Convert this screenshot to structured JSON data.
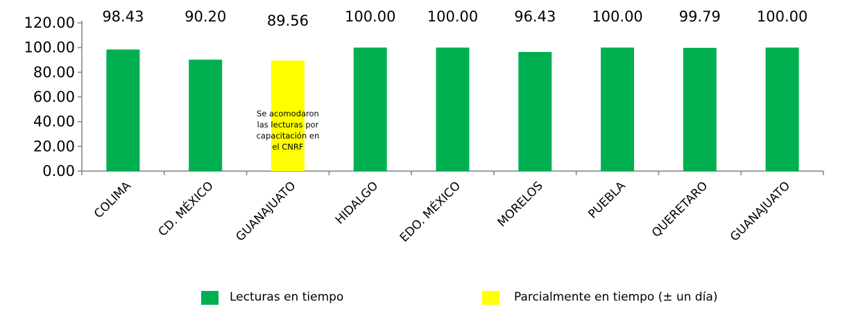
{
  "chart_data": {
    "type": "bar",
    "categories": [
      "COLIMA",
      "CD. MÉXICO",
      "GUANAJUATO",
      "HIDALGO",
      "EDO. MÉXICO",
      "MORELOS",
      "PUEBLA",
      "QUERETARO",
      "GUANAJUATO"
    ],
    "values": [
      98.43,
      90.2,
      89.56,
      100.0,
      100.0,
      96.43,
      100.0,
      99.79,
      100.0
    ],
    "value_labels": [
      "98.43",
      "90.20",
      "89.56",
      "100.00",
      "100.00",
      "96.43",
      "100.00",
      "99.79",
      "100.00"
    ],
    "bar_status": [
      "on_time",
      "on_time",
      "partial",
      "on_time",
      "on_time",
      "on_time",
      "on_time",
      "on_time",
      "on_time"
    ],
    "yticks": [
      "0.00",
      "20.00",
      "40.00",
      "60.00",
      "80.00",
      "100.00",
      "120.00"
    ],
    "ylim": [
      0,
      120
    ],
    "grid": false,
    "legend_position": "bottom",
    "legend": [
      {
        "key": "on_time",
        "label": "Lecturas en tiempo",
        "color": "#00b050"
      },
      {
        "key": "partial",
        "label": "Parcialmente en tiempo (± un día)",
        "color": "#ffff00"
      }
    ],
    "annotation": {
      "category_index": 2,
      "lines": [
        "Se acomodaron",
        "las lecturas por",
        "capacitación en",
        "el CNRF"
      ]
    }
  },
  "colors": {
    "on_time": "#00b050",
    "partial": "#ffff00",
    "axis": "#808080"
  }
}
